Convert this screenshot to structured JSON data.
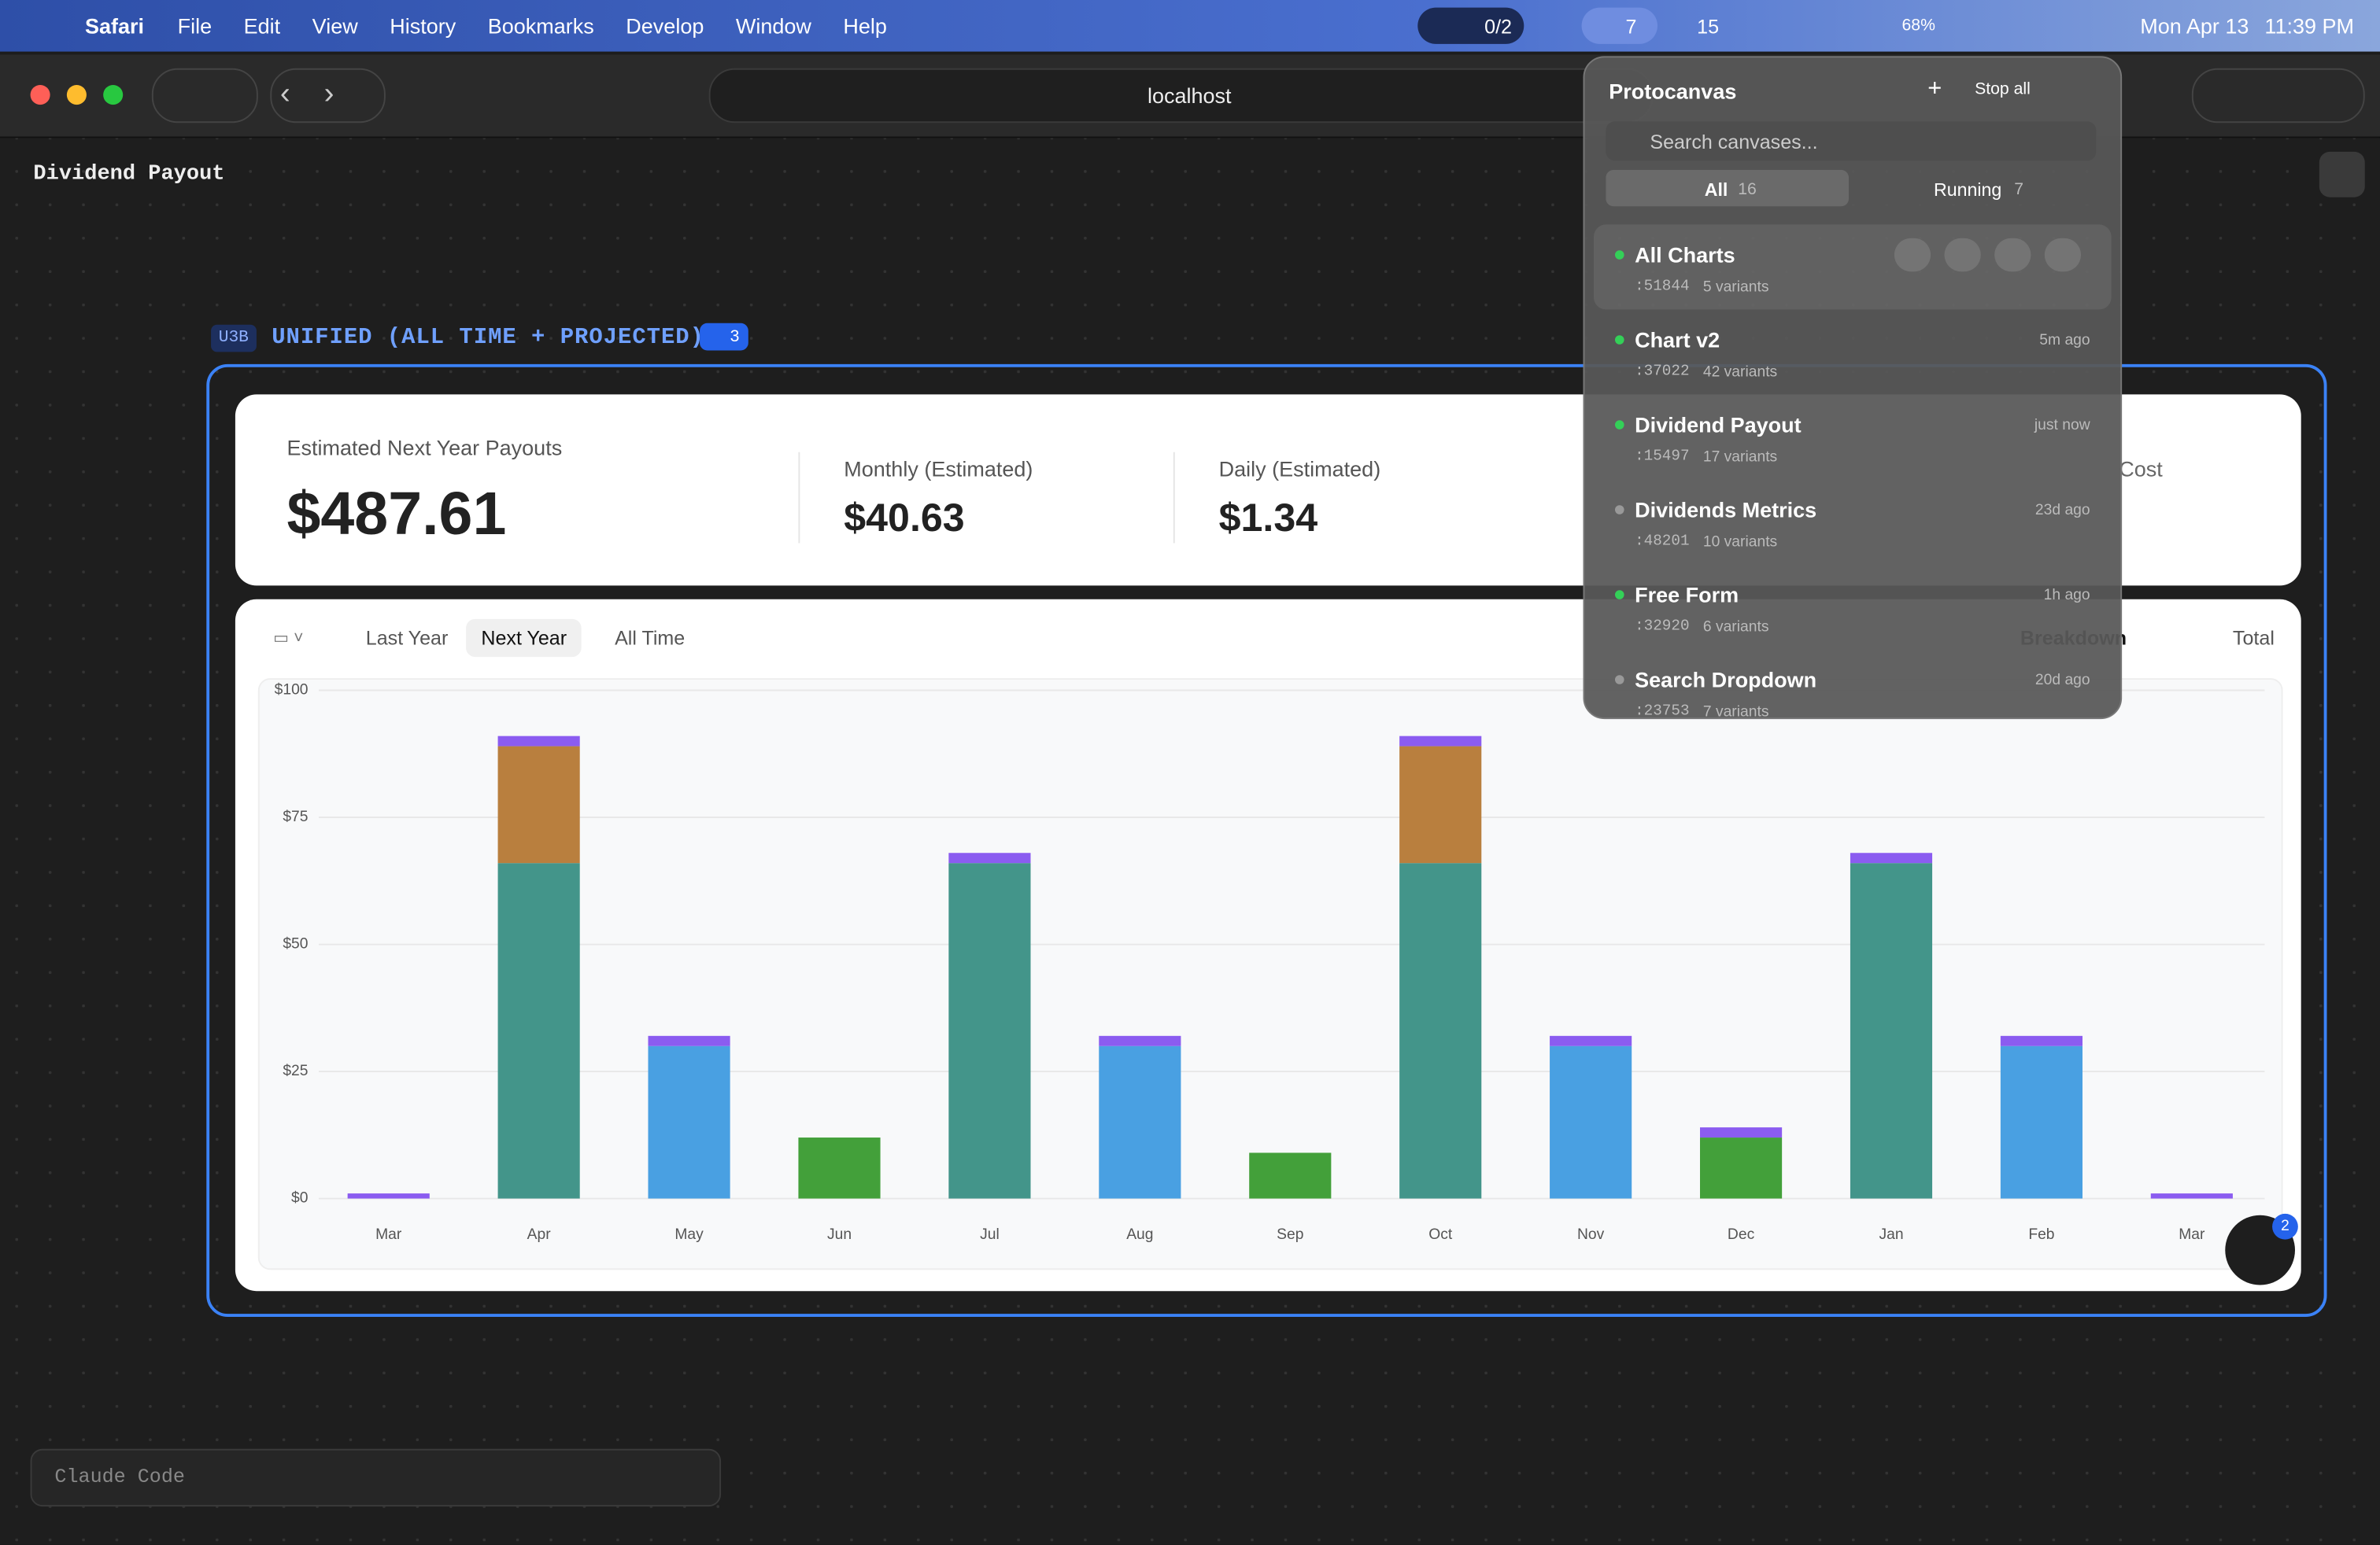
{
  "menubar": {
    "app": "Safari",
    "items": [
      "File",
      "Edit",
      "View",
      "History",
      "Bookmarks",
      "Develop",
      "Window",
      "Help"
    ],
    "status": {
      "tasks": "0/2",
      "agents": "7",
      "other": "15",
      "battery": "68%",
      "date": "Mon Apr 13",
      "time": "11:39 PM"
    }
  },
  "browser": {
    "url": "localhost"
  },
  "page": {
    "title": "Dividend Payout",
    "badge": "U3B",
    "section": "UNIFIED (ALL TIME + PROJECTED)",
    "comments": "3",
    "hidden_stat": "Cost",
    "stats": [
      {
        "label": "Estimated Next Year Payouts",
        "value": "$487.61"
      },
      {
        "label": "Monthly (Estimated)",
        "value": "$40.63"
      },
      {
        "label": "Daily (Estimated)",
        "value": "$1.34"
      }
    ],
    "ranges": [
      "Last Year",
      "Next Year",
      "All Time"
    ],
    "views": [
      "Breakdown",
      "Total"
    ],
    "fab_badge": "2",
    "prompt": "Claude Code"
  },
  "popup": {
    "title": "Protocanvas",
    "stop": "Stop all",
    "search": "Search canvases...",
    "tabs": [
      {
        "name": "All",
        "count": "16"
      },
      {
        "name": "Running",
        "count": "7"
      }
    ],
    "items": [
      {
        "name": "All Charts",
        "port": ":51844",
        "variants": "5 variants",
        "running": true
      },
      {
        "name": "Chart v2",
        "port": ":37022",
        "variants": "42 variants",
        "time": "5m ago",
        "running": true
      },
      {
        "name": "Dividend Payout",
        "port": ":15497",
        "variants": "17 variants",
        "time": "just now",
        "running": true
      },
      {
        "name": "Dividends Metrics",
        "port": ":48201",
        "variants": "10 variants",
        "time": "23d ago",
        "running": false
      },
      {
        "name": "Free Form",
        "port": ":32920",
        "variants": "6 variants",
        "time": "1h ago",
        "running": true
      },
      {
        "name": "Search Dropdown",
        "port": ":23753",
        "variants": "7 variants",
        "time": "20d ago",
        "running": false
      }
    ]
  },
  "chart_data": {
    "type": "stacked-bar",
    "categories": [
      "Mar",
      "Apr",
      "May",
      "Jun",
      "Jul",
      "Aug",
      "Sep",
      "Oct",
      "Nov",
      "Dec",
      "Jan",
      "Feb",
      "Mar"
    ],
    "series": [
      {
        "color": "#43958a",
        "values": [
          0,
          66,
          0,
          0,
          66,
          0,
          0,
          66,
          0,
          0,
          66,
          0,
          0
        ]
      },
      {
        "color": "#b97f3e",
        "values": [
          0,
          23,
          0,
          0,
          0,
          0,
          0,
          23,
          0,
          0,
          0,
          0,
          0
        ]
      },
      {
        "color": "#49a0e2",
        "values": [
          0,
          0,
          30,
          0,
          0,
          30,
          0,
          0,
          30,
          0,
          0,
          30,
          0
        ]
      },
      {
        "color": "#43a03a",
        "values": [
          0,
          0,
          0,
          12,
          0,
          0,
          9,
          0,
          0,
          12,
          0,
          0,
          0
        ]
      },
      {
        "color": "#8b5cf0",
        "values": [
          1,
          2,
          2,
          0,
          2,
          2,
          0,
          2,
          2,
          2,
          2,
          2,
          1
        ]
      }
    ],
    "ylim": [
      0,
      100
    ],
    "yticks": [
      {
        "value": 0,
        "label": "$0"
      },
      {
        "value": 25,
        "label": "$25"
      },
      {
        "value": 50,
        "label": "$50"
      },
      {
        "value": 75,
        "label": "$75"
      },
      {
        "value": 100,
        "label": "$100"
      }
    ],
    "grid": true
  }
}
